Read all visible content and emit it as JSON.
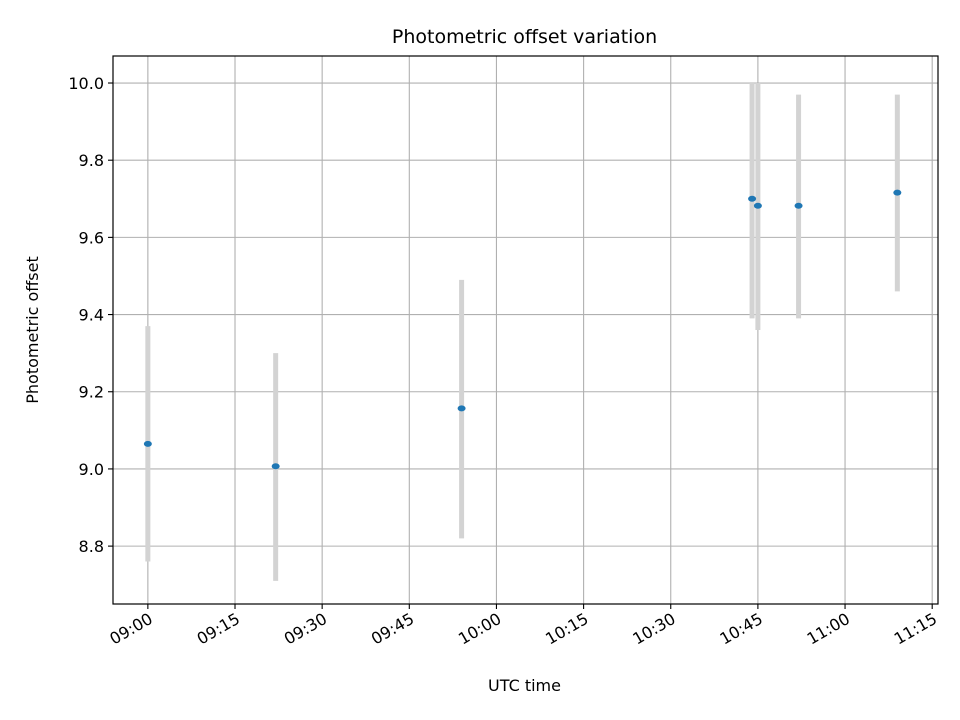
{
  "chart_data": {
    "type": "scatter",
    "title": "Photometric offset variation",
    "xlabel": "UTC time",
    "ylabel": "Photometric offset",
    "xlim": [
      "08:54",
      "11:16"
    ],
    "ylim": [
      8.65,
      10.07
    ],
    "grid": true,
    "x_ticks": [
      "09:00",
      "09:15",
      "09:30",
      "09:45",
      "10:00",
      "10:15",
      "10:30",
      "10:45",
      "11:00",
      "11:15"
    ],
    "y_ticks": [
      8.8,
      9.0,
      9.2,
      9.4,
      9.6,
      9.8,
      10.0
    ],
    "colors": {
      "point": "#1f77b4",
      "errorbar": "#d3d3d3",
      "grid": "#b0b0b0"
    },
    "points": [
      {
        "x": "09:00",
        "y": 9.065,
        "yerr_low": 8.76,
        "yerr_high": 9.37
      },
      {
        "x": "09:22",
        "y": 9.007,
        "yerr_low": 8.71,
        "yerr_high": 9.3
      },
      {
        "x": "09:54",
        "y": 9.157,
        "yerr_low": 8.82,
        "yerr_high": 9.49
      },
      {
        "x": "10:44",
        "y": 9.7,
        "yerr_low": 9.39,
        "yerr_high": 10.0
      },
      {
        "x": "10:45",
        "y": 9.682,
        "yerr_low": 9.36,
        "yerr_high": 10.0
      },
      {
        "x": "10:52",
        "y": 9.682,
        "yerr_low": 9.39,
        "yerr_high": 9.97
      },
      {
        "x": "11:09",
        "y": 9.716,
        "yerr_low": 9.46,
        "yerr_high": 9.97
      }
    ]
  }
}
